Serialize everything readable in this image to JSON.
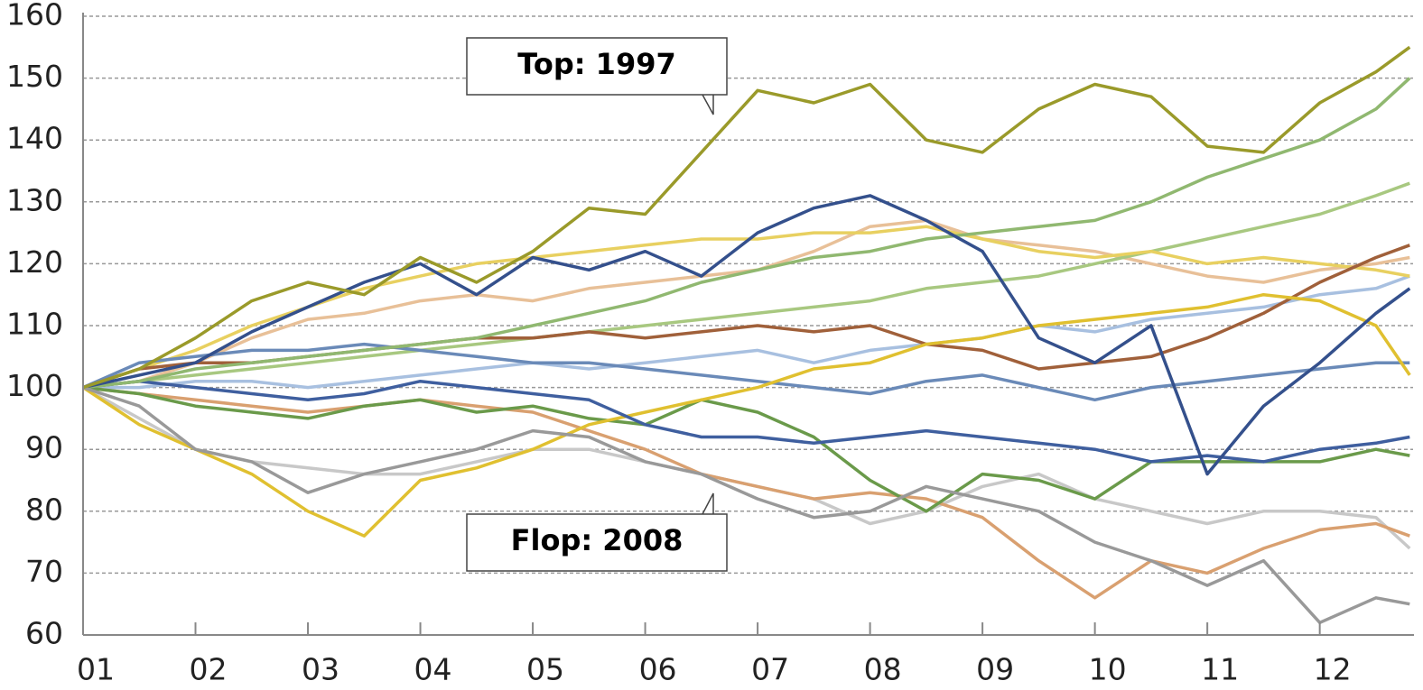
{
  "chart_data": {
    "type": "line",
    "annotations": [
      "Top: 1997",
      "Flop: 2008"
    ],
    "x": [
      1,
      1.5,
      2,
      2.5,
      3,
      3.5,
      4,
      4.5,
      5,
      5.5,
      6,
      6.5,
      7,
      7.5,
      8,
      8.5,
      9,
      9.5,
      10,
      10.5,
      11,
      11.5,
      12,
      12.5,
      12.8
    ],
    "xlim": [
      1,
      12.83
    ],
    "xticks": [
      {
        "value": 1,
        "label": "01"
      },
      {
        "value": 2,
        "label": "02"
      },
      {
        "value": 3,
        "label": "03"
      },
      {
        "value": 4,
        "label": "04"
      },
      {
        "value": 5,
        "label": "05"
      },
      {
        "value": 6,
        "label": "06"
      },
      {
        "value": 7,
        "label": "07"
      },
      {
        "value": 8,
        "label": "08"
      },
      {
        "value": 9,
        "label": "09"
      },
      {
        "value": 10,
        "label": "10"
      },
      {
        "value": 11,
        "label": "11"
      },
      {
        "value": 12,
        "label": "12"
      }
    ],
    "ylim": [
      60,
      160
    ],
    "yticks": [
      60,
      70,
      80,
      90,
      100,
      110,
      120,
      130,
      140,
      150,
      160
    ],
    "grid": true,
    "series": [
      {
        "color": "#a8c0e0",
        "values": [
          100,
          100,
          101,
          101,
          100,
          101,
          102,
          103,
          104,
          103,
          104,
          105,
          106,
          104,
          106,
          107,
          108,
          110,
          109,
          111,
          112,
          113,
          115,
          116,
          118
        ]
      },
      {
        "color": "#e8c098",
        "values": [
          100,
          101,
          104,
          108,
          111,
          112,
          114,
          115,
          114,
          116,
          117,
          118,
          119,
          122,
          126,
          127,
          124,
          123,
          122,
          120,
          118,
          117,
          119,
          120,
          121
        ]
      },
      {
        "color": "#c8c8c8",
        "values": [
          100,
          95,
          90,
          88,
          87,
          86,
          86,
          88,
          90,
          90,
          88,
          86,
          84,
          82,
          78,
          80,
          84,
          86,
          82,
          80,
          78,
          80,
          80,
          79,
          74
        ]
      },
      {
        "color": "#a8c880",
        "values": [
          100,
          101,
          102,
          103,
          104,
          105,
          106,
          107,
          108,
          109,
          110,
          111,
          112,
          113,
          114,
          116,
          117,
          118,
          120,
          122,
          124,
          126,
          128,
          131,
          133
        ]
      },
      {
        "color": "#e8d060",
        "values": [
          100,
          103,
          106,
          110,
          113,
          116,
          118,
          120,
          121,
          122,
          123,
          124,
          124,
          125,
          125,
          126,
          124,
          122,
          121,
          122,
          120,
          121,
          120,
          119,
          118
        ]
      },
      {
        "color": "#6a8ab8",
        "values": [
          100,
          104,
          105,
          106,
          106,
          107,
          106,
          105,
          104,
          104,
          103,
          102,
          101,
          100,
          99,
          101,
          102,
          100,
          98,
          100,
          101,
          102,
          103,
          104,
          104
        ]
      },
      {
        "color": "#a0603a",
        "values": [
          100,
          103,
          104,
          104,
          105,
          106,
          107,
          108,
          108,
          109,
          108,
          109,
          110,
          109,
          110,
          107,
          106,
          103,
          104,
          105,
          108,
          112,
          117,
          121,
          123
        ]
      },
      {
        "color": "#d9a070",
        "values": [
          100,
          99,
          98,
          97,
          96,
          97,
          98,
          97,
          96,
          93,
          90,
          86,
          84,
          82,
          83,
          82,
          79,
          72,
          66,
          72,
          70,
          74,
          77,
          78,
          76
        ]
      },
      {
        "color": "#6a9a4a",
        "values": [
          100,
          99,
          97,
          96,
          95,
          97,
          98,
          96,
          97,
          95,
          94,
          98,
          96,
          92,
          85,
          80,
          86,
          85,
          82,
          88,
          88,
          88,
          88,
          90,
          89
        ]
      },
      {
        "color": "#e0c030",
        "values": [
          100,
          94,
          90,
          86,
          80,
          76,
          85,
          87,
          90,
          94,
          96,
          98,
          100,
          103,
          104,
          107,
          108,
          110,
          111,
          112,
          113,
          115,
          114,
          110,
          102
        ]
      },
      {
        "color": "#3f5f9f",
        "values": [
          100,
          101,
          100,
          99,
          98,
          99,
          101,
          100,
          99,
          98,
          94,
          92,
          92,
          91,
          92,
          93,
          92,
          91,
          90,
          88,
          89,
          88,
          90,
          91,
          92
        ]
      },
      {
        "color": "#90b870",
        "values": [
          100,
          101,
          103,
          104,
          105,
          106,
          107,
          108,
          110,
          112,
          114,
          117,
          119,
          121,
          122,
          124,
          125,
          126,
          127,
          130,
          134,
          137,
          140,
          145,
          150
        ]
      },
      {
        "color": "#34508c",
        "values": [
          100,
          102,
          104,
          109,
          113,
          117,
          120,
          115,
          121,
          119,
          122,
          118,
          125,
          129,
          131,
          127,
          122,
          108,
          104,
          110,
          86,
          97,
          104,
          112,
          116
        ]
      },
      {
        "color": "#999999",
        "values": [
          100,
          97,
          90,
          88,
          83,
          86,
          88,
          90,
          93,
          92,
          88,
          86,
          82,
          79,
          80,
          84,
          82,
          80,
          75,
          72,
          68,
          72,
          62,
          66,
          65
        ]
      },
      {
        "color": "#9a9a2a",
        "values": [
          100,
          103,
          108,
          114,
          117,
          115,
          121,
          117,
          122,
          129,
          128,
          138,
          148,
          146,
          149,
          140,
          138,
          145,
          149,
          147,
          139,
          138,
          146,
          151,
          155
        ]
      }
    ]
  }
}
